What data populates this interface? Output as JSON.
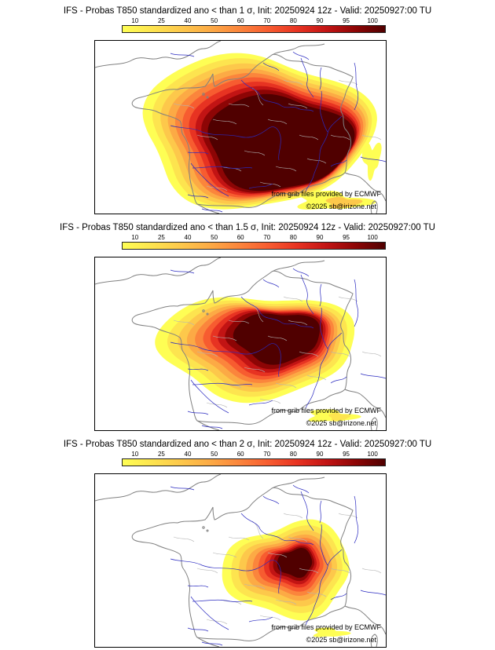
{
  "colorbar": {
    "ticks": [
      "10",
      "25",
      "40",
      "50",
      "60",
      "70",
      "80",
      "90",
      "95",
      "100"
    ],
    "colors": [
      "#fefe54",
      "#fde44f",
      "#fdc84b",
      "#fcaa45",
      "#fb853c",
      "#f75c30",
      "#e73322",
      "#c21414",
      "#8d0505",
      "#500000"
    ]
  },
  "map_colors": {
    "river": "#2a2ac0",
    "boundary": "#b4b4b4",
    "coast": "#808080"
  },
  "panels": [
    {
      "title": "IFS - Probas T850  standardized ano < than 1 σ, Init: 20250924 12z - Valid: 20250927:00 TU",
      "credit": "from grib files provided by ECMWF",
      "copyright": "©2025 sb@irizone.net"
    },
    {
      "title": "IFS - Probas T850  standardized ano < than 1.5 σ, Init: 20250924 12z - Valid: 20250927:00 TU",
      "credit": "from grib files provided by ECMWF",
      "copyright": "©2025 sb@irizone.net"
    },
    {
      "title": "IFS - Probas T850  standardized ano < than 2 σ, Init: 20250924 12z - Valid: 20250927:00 TU",
      "credit": "from grib files provided by ECMWF",
      "copyright": "©2025 sb@irizone.net"
    }
  ]
}
